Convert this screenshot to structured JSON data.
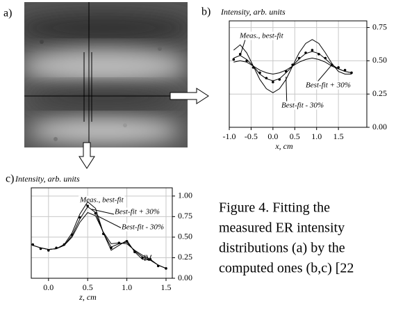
{
  "figure": {
    "panel_labels": [
      "a)",
      "b)",
      "c)"
    ],
    "caption": [
      "Figure 4. Fitting the",
      "measured ER intensity",
      "distributions (a) by the",
      "computed ones (b,c) [22"
    ]
  },
  "chart_data": [
    {
      "type": "line",
      "title": "Intensity, arb. units",
      "xlabel": "x, cm",
      "x": [
        -0.9,
        -0.75,
        -0.6,
        -0.45,
        -0.3,
        -0.15,
        0,
        0.15,
        0.3,
        0.45,
        0.6,
        0.75,
        0.9,
        1.05,
        1.2,
        1.35,
        1.5,
        1.65,
        1.8
      ],
      "series": [
        {
          "name": "Meas., best-fit",
          "color": "#000000",
          "values": [
            0.52,
            0.54,
            0.51,
            0.46,
            0.4,
            0.365,
            0.35,
            0.365,
            0.41,
            0.46,
            0.515,
            0.555,
            0.57,
            0.555,
            0.515,
            0.47,
            0.44,
            0.42,
            0.41
          ],
          "points": [
            0.51,
            0.55,
            0.5,
            0.45,
            0.41,
            0.37,
            0.34,
            0.36,
            0.42,
            0.47,
            0.52,
            0.56,
            0.58,
            0.55,
            0.52,
            0.47,
            0.45,
            0.43,
            0.41
          ]
        },
        {
          "name": "Best-fit + 30%",
          "color": "#000000",
          "values": [
            0.58,
            0.62,
            0.56,
            0.46,
            0.36,
            0.29,
            0.26,
            0.29,
            0.36,
            0.46,
            0.56,
            0.63,
            0.66,
            0.63,
            0.56,
            0.48,
            0.42,
            0.4,
            0.4
          ]
        },
        {
          "name": "Best-fit - 30%",
          "color": "#000000",
          "values": [
            0.49,
            0.5,
            0.49,
            0.46,
            0.43,
            0.41,
            0.4,
            0.41,
            0.43,
            0.46,
            0.49,
            0.51,
            0.52,
            0.51,
            0.49,
            0.46,
            0.44,
            0.42,
            0.41
          ]
        }
      ],
      "xlim": [
        -1.0,
        2.15
      ],
      "ylim": [
        0,
        0.8
      ],
      "xticks": [
        {
          "value": -1,
          "label": "-1.0"
        },
        -0.5,
        {
          "value": 0,
          "label": "0.0"
        },
        0.5,
        {
          "value": 1,
          "label": "1.0"
        },
        1.5
      ],
      "yticks": [
        {
          "value": 0,
          "label": "0.00"
        },
        0.25,
        {
          "value": 0.5,
          "label": "0.50"
        },
        0.75
      ],
      "grid": true
    },
    {
      "type": "line",
      "title": "Intensity, arb. units",
      "xlabel": "z, cm",
      "annotation": "IV",
      "x": [
        -0.2,
        -0.1,
        0,
        0.1,
        0.2,
        0.3,
        0.4,
        0.5,
        0.6,
        0.7,
        0.8,
        0.9,
        1.0,
        1.1,
        1.2,
        1.3,
        1.4,
        1.5
      ],
      "series": [
        {
          "name": "Meas., best-fit",
          "color": "#000000",
          "values": [
            0.4,
            0.37,
            0.35,
            0.36,
            0.4,
            0.52,
            0.72,
            0.87,
            0.8,
            0.55,
            0.38,
            0.42,
            0.44,
            0.33,
            0.26,
            0.22,
            0.16,
            0.12
          ],
          "points": [
            0.41,
            0.36,
            0.34,
            0.37,
            0.41,
            0.53,
            0.74,
            0.88,
            0.79,
            0.54,
            0.37,
            0.43,
            0.45,
            0.32,
            0.25,
            0.23,
            0.15,
            0.12
          ]
        },
        {
          "name": "Best-fit + 30%",
          "color": "#000000",
          "values": [
            0.4,
            0.37,
            0.35,
            0.36,
            0.41,
            0.55,
            0.78,
            0.93,
            0.85,
            0.55,
            0.34,
            0.4,
            0.46,
            0.32,
            0.23,
            0.22,
            0.16,
            0.12
          ]
        },
        {
          "name": "Best-fit - 30%",
          "color": "#000000",
          "values": [
            0.4,
            0.37,
            0.35,
            0.36,
            0.4,
            0.5,
            0.68,
            0.8,
            0.76,
            0.56,
            0.42,
            0.43,
            0.42,
            0.34,
            0.28,
            0.23,
            0.16,
            0.12
          ]
        }
      ],
      "xlim": [
        -0.22,
        1.58
      ],
      "ylim": [
        0,
        1.1
      ],
      "xticks": [
        {
          "value": 0,
          "label": "0.0"
        },
        0.5,
        {
          "value": 1,
          "label": "1.0"
        },
        1.5
      ],
      "yticks": [
        {
          "value": 0,
          "label": "0.00"
        },
        0.25,
        {
          "value": 0.5,
          "label": "0.50"
        },
        0.75,
        {
          "value": 1,
          "label": "1.00"
        }
      ],
      "grid": true
    }
  ]
}
